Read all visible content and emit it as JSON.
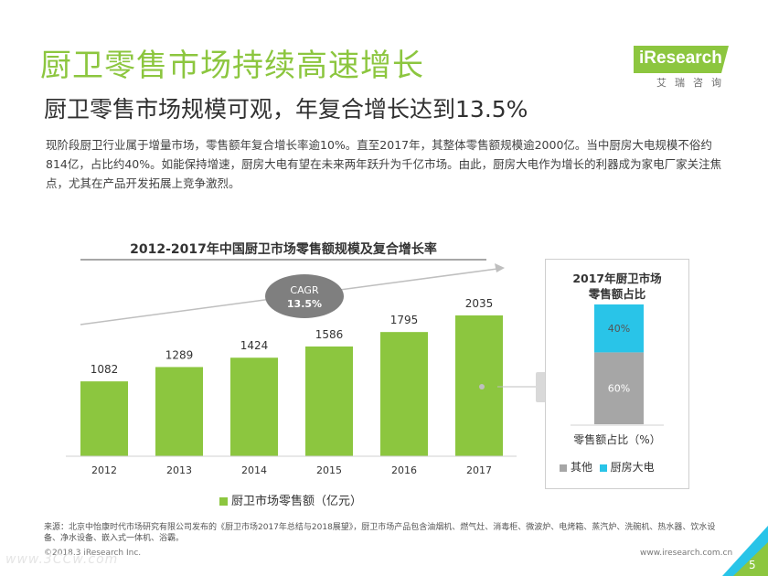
{
  "header": {
    "title": "厨卫零售市场持续高速增长",
    "subtitle": "厨卫零售市场规模可观，年复合增长达到13.5%",
    "paragraph": "现阶段厨卫行业属于增量市场，零售额年复合增长率逾10%。直至2017年，其整体零售额规模逾2000亿。当中厨房大电规模不俗约814亿，占比约40%。如能保持增速，厨房大电有望在未来两年跃升为千亿市场。由此，厨房大电作为增长的利器成为家电厂家关注焦点，尤其在产品开发拓展上竞争激烈。"
  },
  "logo": {
    "brand": "iResearch",
    "sub": "艾瑞咨询"
  },
  "chart_data": [
    {
      "type": "bar",
      "title": "2012-2017年中国厨卫市场零售额规模及复合增长率",
      "categories": [
        "2012",
        "2013",
        "2014",
        "2015",
        "2016",
        "2017"
      ],
      "series": [
        {
          "name": "厨卫市场零售额（亿元）",
          "values": [
            1082,
            1289,
            1424,
            1586,
            1795,
            2035
          ]
        }
      ],
      "ylim": [
        0,
        2200
      ],
      "annotation": {
        "label": "CAGR",
        "value": "13.5%"
      },
      "legend_position": "bottom",
      "color": "#8cc63f"
    },
    {
      "type": "bar",
      "stacked": true,
      "title_lines": [
        "2017年厨卫市场",
        "零售额占比"
      ],
      "categories": [
        "2017"
      ],
      "xlabel": "零售额占比（%）",
      "series": [
        {
          "name": "其他",
          "values": [
            60
          ],
          "label": "60%",
          "color": "#a6a6a6"
        },
        {
          "name": "厨房大电",
          "values": [
            40
          ],
          "label": "40%",
          "color": "#29c4e8"
        }
      ],
      "ylim": [
        0,
        100
      ],
      "legend_position": "bottom"
    }
  ],
  "footer": {
    "source": "来源：北京中怡康时代市场研究有限公司发布的《厨卫市场2017年总结与2018展望》，厨卫市场产品包含油烟机、燃气灶、消毒柜、微波炉、电烤箱、蒸汽炉、洗碗机、热水器、饮水设备、净水设备、嵌入式一体机、浴霸。",
    "copyright": "©2018.3 iResearch Inc.",
    "website": "www.iresearch.com.cn",
    "page": "5",
    "watermark": "www.3CCw.com"
  },
  "colors": {
    "accent": "#8cc63f",
    "cyan": "#29c4e8",
    "gray": "#a6a6a6"
  }
}
